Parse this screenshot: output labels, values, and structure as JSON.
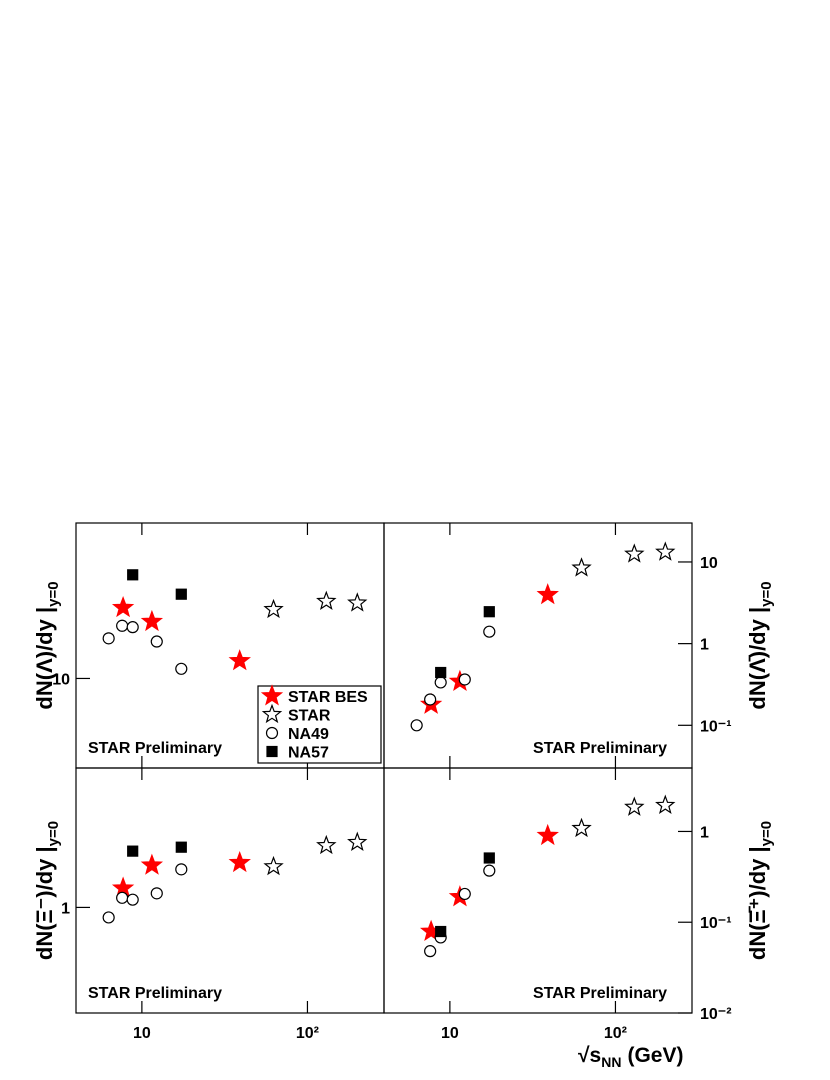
{
  "chart_data": [
    {
      "type": "scatter",
      "ylabel": "dN(Λ)/dy |",
      "ylabel_sub": "y=0",
      "annotation": "STAR Preliminary",
      "xlim": [
        4,
        290
      ],
      "xticks": [
        10,
        100
      ],
      "ylim": [
        4.5,
        40
      ],
      "yticks": [
        10
      ],
      "log_x": true,
      "log_y": true,
      "legend": "lower right",
      "series": [
        {
          "name": "STAR BES",
          "marker": "star",
          "filled": true,
          "color": "#ff0000",
          "x": [
            7.7,
            11.5,
            39
          ],
          "values": [
            18.8,
            16.6,
            11.7
          ]
        },
        {
          "name": "STAR",
          "marker": "star",
          "filled": false,
          "color": "#000000",
          "x": [
            62.4,
            130,
            200
          ],
          "values": [
            18.5,
            19.9,
            19.6
          ]
        },
        {
          "name": "NA49",
          "marker": "circle",
          "filled": false,
          "color": "#000000",
          "x": [
            6.3,
            7.6,
            8.8,
            12.3,
            17.3
          ],
          "values": [
            14.3,
            16.0,
            15.8,
            13.9,
            10.9
          ]
        },
        {
          "name": "NA57",
          "marker": "square",
          "filled": true,
          "color": "#000000",
          "x": [
            8.8,
            17.3
          ],
          "values": [
            25.2,
            21.2
          ]
        }
      ]
    },
    {
      "type": "scatter",
      "ylabel": "dN(Λ̄)/dy |",
      "ylabel_sub": "y=0",
      "annotation": "STAR Preliminary",
      "xlim": [
        4,
        290
      ],
      "xticks": [
        10,
        100
      ],
      "ylim": [
        0.03,
        30
      ],
      "yticks": [
        {
          "value": 0.1,
          "label": "10⁻¹"
        },
        1,
        10
      ],
      "log_x": true,
      "log_y": true,
      "series": [
        {
          "marker": "star",
          "filled": true,
          "color": "#ff0000",
          "x": [
            7.7,
            11.5,
            39
          ],
          "values": [
            0.18,
            0.344,
            3.96
          ]
        },
        {
          "marker": "star",
          "filled": false,
          "color": "#000000",
          "x": [
            62.4,
            130,
            200
          ],
          "values": [
            8.45,
            12.5,
            13.2
          ]
        },
        {
          "marker": "circle",
          "filled": false,
          "color": "#000000",
          "x": [
            6.3,
            7.6,
            8.8,
            12.3,
            17.3
          ],
          "values": [
            0.1,
            0.207,
            0.335,
            0.364,
            1.4
          ]
        },
        {
          "marker": "square",
          "filled": true,
          "color": "#000000",
          "x": [
            8.8,
            17.3
          ],
          "values": [
            0.443,
            2.46
          ]
        }
      ]
    },
    {
      "type": "scatter",
      "ylabel": "dN(Ξ⁻)/dy |",
      "ylabel_sub": "y=0",
      "annotation": "STAR Preliminary",
      "xlim": [
        4,
        290
      ],
      "xticks": [
        10,
        {
          "value": 100,
          "label": "10²"
        }
      ],
      "ylim": [
        0.35,
        4
      ],
      "yticks": [
        1
      ],
      "log_x": true,
      "log_y": true,
      "series": [
        {
          "marker": "star",
          "filled": true,
          "color": "#ff0000",
          "x": [
            7.7,
            11.5,
            39
          ],
          "values": [
            1.21,
            1.52,
            1.56
          ]
        },
        {
          "marker": "star",
          "filled": false,
          "color": "#000000",
          "x": [
            62.4,
            130,
            200
          ],
          "values": [
            1.5,
            1.85,
            1.91
          ]
        },
        {
          "marker": "circle",
          "filled": false,
          "color": "#000000",
          "x": [
            6.3,
            7.6,
            8.8,
            12.3,
            17.3
          ],
          "values": [
            0.905,
            1.1,
            1.08,
            1.15,
            1.46
          ]
        },
        {
          "marker": "square",
          "filled": true,
          "color": "#000000",
          "x": [
            8.8,
            17.3
          ],
          "values": [
            1.75,
            1.82
          ]
        }
      ]
    },
    {
      "type": "scatter",
      "ylabel": "dN(Ξ̄⁺)/dy |",
      "ylabel_sub": "y=0",
      "annotation": "STAR Preliminary",
      "xlabel": "√s",
      "xlabel_sub": "NN",
      "xlabel_unit": "(GeV)",
      "xlim": [
        4,
        290
      ],
      "xticks": [
        10,
        {
          "value": 100,
          "label": "10²"
        }
      ],
      "ylim": [
        0.01,
        5
      ],
      "yticks": [
        {
          "value": 0.01,
          "label": "10⁻²"
        },
        {
          "value": 0.1,
          "label": "10⁻¹"
        },
        1
      ],
      "log_x": true,
      "log_y": true,
      "series": [
        {
          "marker": "star",
          "filled": true,
          "color": "#ff0000",
          "x": [
            7.7,
            11.5,
            39
          ],
          "values": [
            0.079,
            0.19,
            0.9
          ]
        },
        {
          "marker": "star",
          "filled": false,
          "color": "#000000",
          "x": [
            62.4,
            130,
            200
          ],
          "values": [
            1.08,
            1.85,
            1.94
          ]
        },
        {
          "marker": "circle",
          "filled": false,
          "color": "#000000",
          "x": [
            7.6,
            8.8,
            12.3,
            17.3
          ],
          "values": [
            0.048,
            0.068,
            0.205,
            0.37
          ]
        },
        {
          "marker": "square",
          "filled": true,
          "color": "#000000",
          "x": [
            8.8,
            17.3
          ],
          "values": [
            0.079,
            0.51
          ]
        }
      ]
    }
  ]
}
